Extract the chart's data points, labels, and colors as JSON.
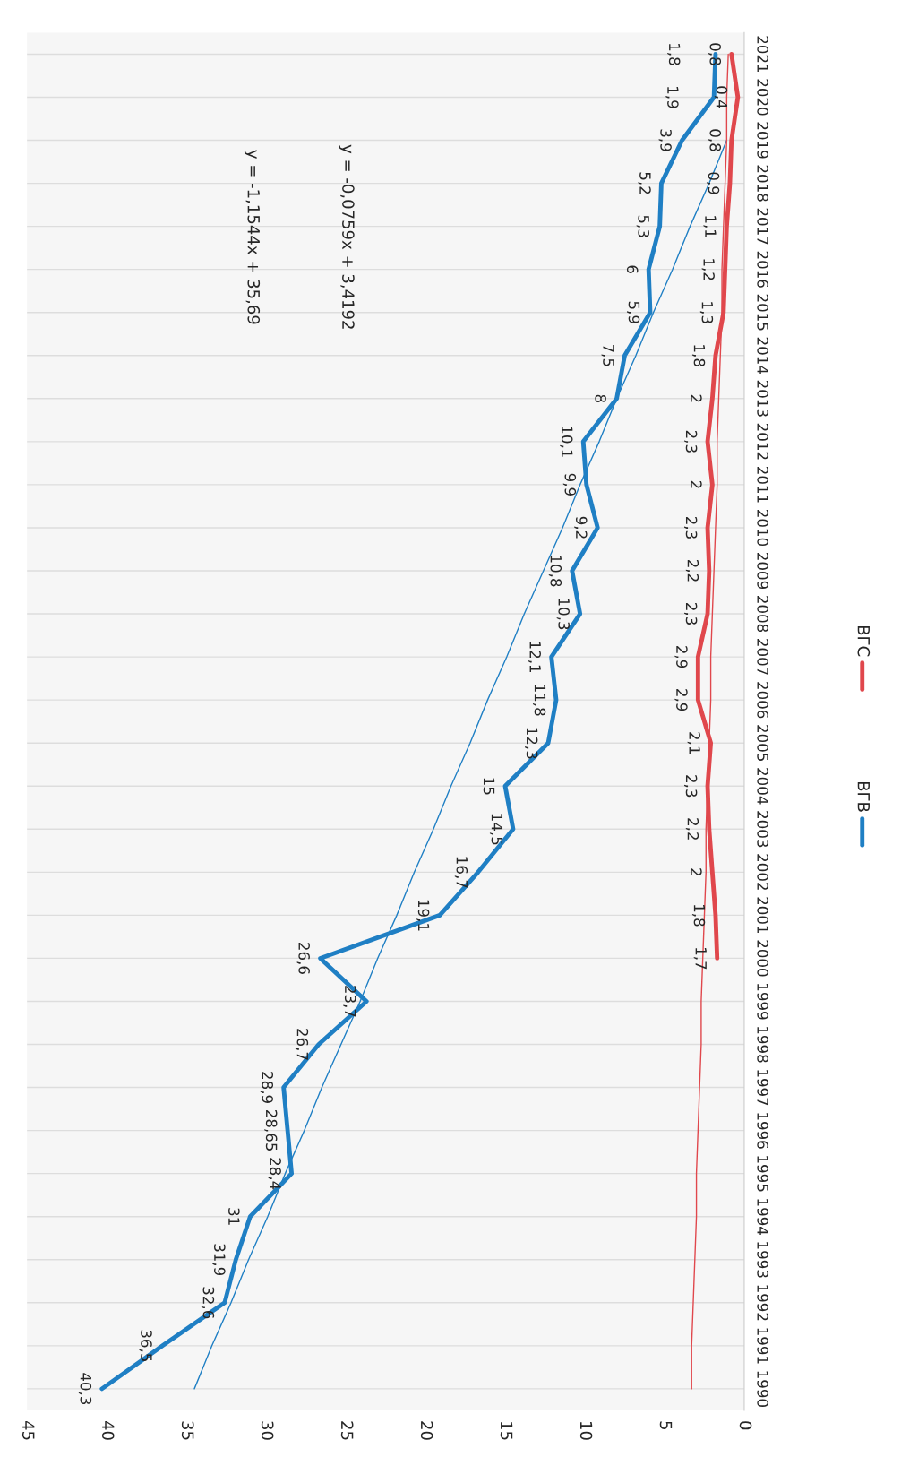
{
  "chart_data": {
    "type": "line",
    "orientation": "horizontal",
    "categories": [
      "2021",
      "2020",
      "2019",
      "2018",
      "2017",
      "2016",
      "2015",
      "2014",
      "2013",
      "2012",
      "2011",
      "2010",
      "2009",
      "2008",
      "2007",
      "2006",
      "2005",
      "2004",
      "2003",
      "2002",
      "2001",
      "2000",
      "1999",
      "1998",
      "1997",
      "1996",
      "1995",
      "1994",
      "1993",
      "1992",
      "1991",
      "1990"
    ],
    "xlim": [
      45,
      0
    ],
    "xticks": [
      0,
      5,
      10,
      15,
      20,
      25,
      30,
      35,
      40,
      45
    ],
    "grid": "y",
    "legend": "right",
    "series": [
      {
        "name": "ВГВ",
        "color": "#1f7fc4",
        "values": [
          1.8,
          1.9,
          3.9,
          5.2,
          5.3,
          6,
          5.9,
          7.5,
          8,
          10.1,
          9.9,
          9.2,
          10.8,
          10.3,
          12.1,
          11.8,
          12.3,
          15,
          14.5,
          16.7,
          19.1,
          26.6,
          23.7,
          26.7,
          28.9,
          28.65,
          28.4,
          31,
          31.9,
          32.6,
          36.5,
          40.3
        ],
        "value_labels": [
          "1,8",
          "1,9",
          "3,9",
          "5,2",
          "5,3",
          "6",
          "5,9",
          "7,5",
          "8",
          "10,1",
          "9,9",
          "9,2",
          "10,8",
          "10,3",
          "12,1",
          "11,8",
          "12,3",
          "15",
          "14,5",
          "16,7",
          "19,1",
          "26,6",
          "23,7",
          "26,7",
          "28,9",
          "28,65",
          "28,4",
          "31",
          "31,9",
          "32,6",
          "36,5",
          "40,3"
        ]
      },
      {
        "name": "ВГС",
        "color": "#e0474c",
        "values": [
          0.8,
          0.4,
          0.8,
          0.9,
          1.1,
          1.2,
          1.3,
          1.8,
          2,
          2.3,
          2,
          2.3,
          2.2,
          2.3,
          2.9,
          2.9,
          2.1,
          2.3,
          2.2,
          2,
          1.8,
          1.7,
          null,
          null,
          null,
          null,
          null,
          null,
          null,
          null,
          null,
          null
        ],
        "value_labels": [
          "0,8",
          "0,4",
          "0,8",
          "0,9",
          "1,1",
          "1,2",
          "1,3",
          "1,8",
          "2",
          "2,3",
          "2",
          "2,3",
          "2,2",
          "2,3",
          "2,9",
          "2,9",
          "2,1",
          "2,3",
          "2,2",
          "2",
          "1,8",
          "1,7",
          null,
          null,
          null,
          null,
          null,
          null,
          null,
          null,
          null,
          null
        ]
      },
      {
        "type": "line",
        "color": "#1f7fc4",
        "values": [
          null,
          null,
          1.1,
          2.2,
          3.4,
          4.5,
          5.7,
          6.8,
          8.0,
          9.1,
          10.3,
          11.4,
          12.6,
          13.8,
          14.9,
          16.1,
          17.2,
          18.4,
          19.5,
          20.7,
          21.8,
          23.0,
          24.1,
          25.3,
          26.5,
          27.6,
          28.8,
          29.9,
          31.1,
          32.2,
          33.4,
          34.5
        ]
      },
      {
        "type": "line",
        "color": "#e0474c",
        "values": [
          1.0,
          1.1,
          1.1,
          1.2,
          1.3,
          1.4,
          1.4,
          1.5,
          1.6,
          1.7,
          1.7,
          1.8,
          1.9,
          2.0,
          2.1,
          2.1,
          2.2,
          2.3,
          2.4,
          2.4,
          2.5,
          2.6,
          2.7,
          2.7,
          2.8,
          2.9,
          3.0,
          3.0,
          3.1,
          3.2,
          3.3,
          3.3
        ]
      }
    ],
    "annotations": [
      "y = -1,1544x + 35,69",
      "y = -0,0759x + 3,4192"
    ]
  }
}
